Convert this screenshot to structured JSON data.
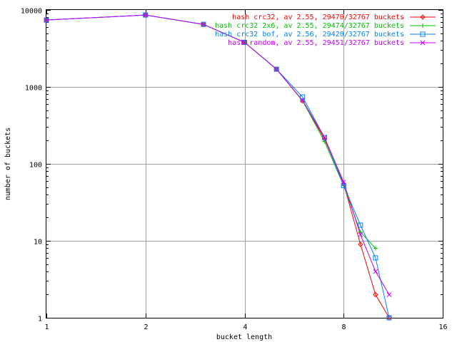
{
  "chart_data": {
    "type": "line",
    "xlabel": "bucket length",
    "ylabel": "number of buckets",
    "xscale": "log2",
    "yscale": "log10",
    "xlim": [
      1,
      16
    ],
    "ylim": [
      1,
      10000
    ],
    "xticks": [
      "1",
      "2",
      "4",
      "8",
      "16"
    ],
    "yticks": [
      "1",
      "10",
      "100",
      "1000",
      "10000"
    ],
    "grid": true,
    "legend_position": "top-right",
    "series": [
      {
        "name": "hash crc32, av 2.55, 29470/32767 buckets",
        "color": "#ff0000",
        "marker": "diamond",
        "x": [
          1,
          2,
          3,
          4,
          5,
          6,
          7,
          8,
          9,
          10,
          11
        ],
        "y": [
          7400,
          8600,
          6500,
          3800,
          1700,
          660,
          210,
          55,
          9,
          2,
          1
        ]
      },
      {
        "name": "hash crc32 2x6, av 2.55, 29474/32767 buckets",
        "color": "#00c000",
        "marker": "plus",
        "x": [
          1,
          2,
          3,
          4,
          5,
          6,
          7,
          8,
          9,
          10
        ],
        "y": [
          7400,
          8600,
          6500,
          3800,
          1700,
          660,
          195,
          52,
          13,
          8
        ]
      },
      {
        "name": "hash crc32 bof, av 2.56, 29420/32767 buckets",
        "color": "#0080ff",
        "marker": "square",
        "x": [
          1,
          2,
          3,
          4,
          5,
          6,
          7,
          8,
          9,
          10,
          11
        ],
        "y": [
          7400,
          8600,
          6500,
          3800,
          1700,
          740,
          220,
          52,
          16,
          6,
          1
        ]
      },
      {
        "name": "hash random, av 2.55, 29451/32767 buckets",
        "color": "#c000ff",
        "marker": "cross",
        "x": [
          1,
          2,
          3,
          4,
          5,
          6,
          7,
          8,
          9,
          10,
          11
        ],
        "y": [
          7400,
          8600,
          6500,
          3800,
          1700,
          670,
          220,
          58,
          12,
          4,
          2
        ]
      }
    ]
  }
}
